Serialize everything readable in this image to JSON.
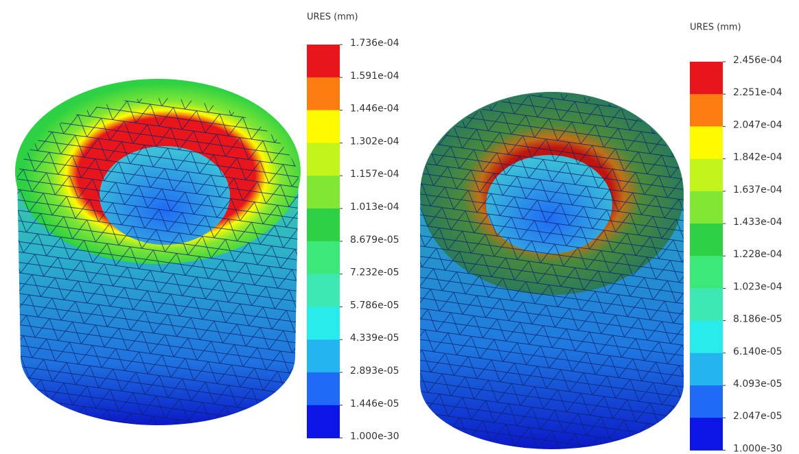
{
  "plots": [
    {
      "legend": {
        "title": "URES (mm)",
        "labels": [
          "1.736e-04",
          "1.591e-04",
          "1.446e-04",
          "1.302e-04",
          "1.157e-04",
          "1.013e-04",
          "8.679e-05",
          "7.232e-05",
          "5.786e-05",
          "4.339e-05",
          "2.893e-05",
          "1.446e-05",
          "1.000e-30"
        ]
      }
    },
    {
      "legend": {
        "title": "URES (mm)",
        "labels": [
          "2.456e-04",
          "2.251e-04",
          "2.047e-04",
          "1.842e-04",
          "1.637e-04",
          "1.433e-04",
          "1.228e-04",
          "1.023e-04",
          "8.186e-05",
          "6.140e-05",
          "4.093e-05",
          "2.047e-05",
          "1.000e-30"
        ]
      }
    }
  ]
}
